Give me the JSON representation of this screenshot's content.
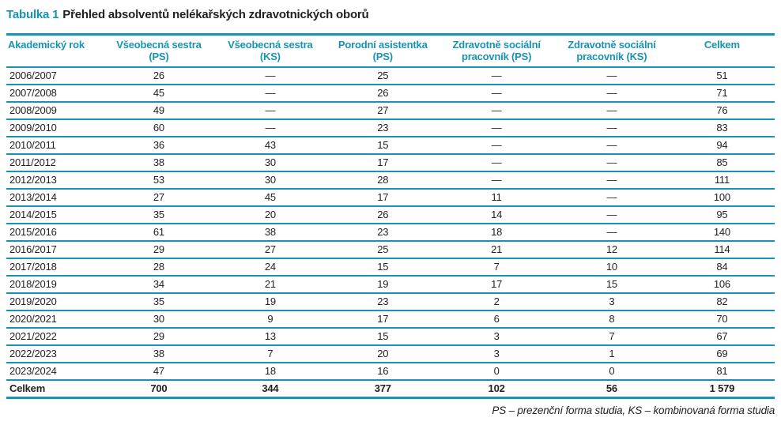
{
  "title": {
    "label": "Tabulka 1",
    "text": "Přehled absolventů nelékařských zdravotnických oborů"
  },
  "table": {
    "columns": [
      "Akademický rok",
      "Všeobecná sestra\n(PS)",
      "Všeobecná sestra\n(KS)",
      "Porodní asistentka\n(PS)",
      "Zdravotně sociální\npracovník (PS)",
      "Zdravotně sociální\npracovník (KS)",
      "Celkem"
    ],
    "rows": [
      [
        "2006/2007",
        "26",
        "—",
        "25",
        "—",
        "—",
        "51"
      ],
      [
        "2007/2008",
        "45",
        "—",
        "26",
        "—",
        "—",
        "71"
      ],
      [
        "2008/2009",
        "49",
        "—",
        "27",
        "—",
        "—",
        "76"
      ],
      [
        "2009/2010",
        "60",
        "—",
        "23",
        "—",
        "—",
        "83"
      ],
      [
        "2010/2011",
        "36",
        "43",
        "15",
        "—",
        "—",
        "94"
      ],
      [
        "2011/2012",
        "38",
        "30",
        "17",
        "—",
        "—",
        "85"
      ],
      [
        "2012/2013",
        "53",
        "30",
        "28",
        "—",
        "—",
        "111"
      ],
      [
        "2013/2014",
        "27",
        "45",
        "17",
        "11",
        "—",
        "100"
      ],
      [
        "2014/2015",
        "35",
        "20",
        "26",
        "14",
        "—",
        "95"
      ],
      [
        "2015/2016",
        "61",
        "38",
        "23",
        "18",
        "—",
        "140"
      ],
      [
        "2016/2017",
        "29",
        "27",
        "25",
        "21",
        "12",
        "114"
      ],
      [
        "2017/2018",
        "28",
        "24",
        "15",
        "7",
        "10",
        "84"
      ],
      [
        "2018/2019",
        "34",
        "21",
        "19",
        "17",
        "15",
        "106"
      ],
      [
        "2019/2020",
        "35",
        "19",
        "23",
        "2",
        "3",
        "82"
      ],
      [
        "2020/2021",
        "30",
        "9",
        "17",
        "6",
        "8",
        "70"
      ],
      [
        "2021/2022",
        "29",
        "13",
        "15",
        "3",
        "7",
        "67"
      ],
      [
        "2022/2023",
        "38",
        "7",
        "20",
        "3",
        "1",
        "69"
      ],
      [
        "2023/2024",
        "47",
        "18",
        "16",
        "0",
        "0",
        "81"
      ]
    ],
    "total_row": [
      "Celkem",
      "700",
      "344",
      "377",
      "102",
      "56",
      "1 579"
    ]
  },
  "footnote": "PS – prezenční forma studia, KS – kombinovaná forma studia",
  "colors": {
    "accent": "#1794b3",
    "text": "#231f20"
  }
}
